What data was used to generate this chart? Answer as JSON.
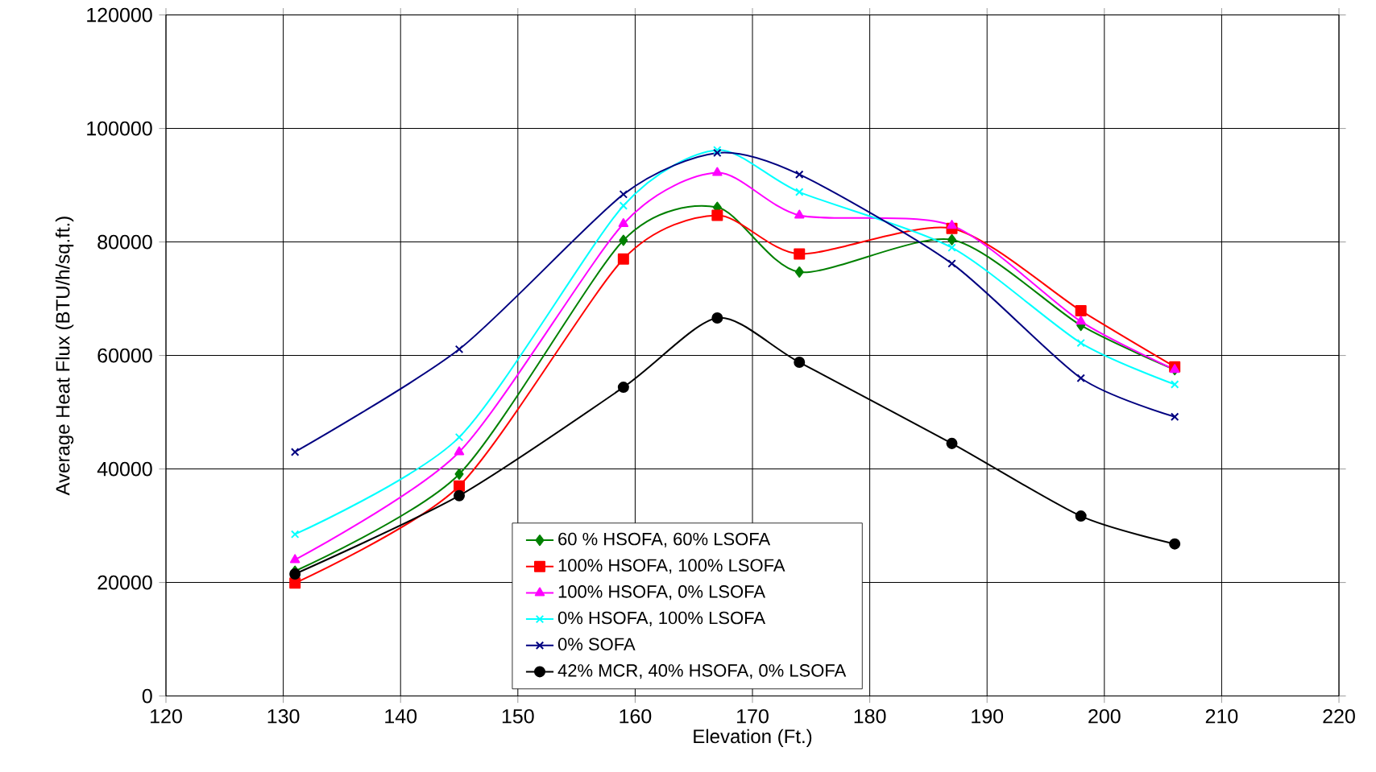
{
  "chart_data": {
    "type": "line",
    "xlabel": "Elevation (Ft.)",
    "ylabel": "Average Heat Flux (BTU/h/sq.ft.)",
    "x": [
      131,
      145,
      159,
      167,
      174,
      187,
      198,
      206
    ],
    "xlim": [
      120,
      220
    ],
    "xticks": [
      120,
      130,
      140,
      150,
      160,
      170,
      180,
      190,
      200,
      210,
      220
    ],
    "ylim": [
      0,
      120000
    ],
    "yticks": [
      0,
      20000,
      40000,
      60000,
      80000,
      100000,
      120000
    ],
    "grid": true,
    "legend": "bottom",
    "line_style": "solid",
    "series": [
      {
        "name": "60 % HSOFA, 60% LSOFA",
        "color": "#008000",
        "marker": "diamond",
        "values": [
          22000,
          39100,
          80300,
          86100,
          74700,
          80400,
          65300,
          57500
        ]
      },
      {
        "name": "100% HSOFA, 100% LSOFA",
        "color": "#ff0000",
        "marker": "square",
        "values": [
          19900,
          37000,
          77000,
          84700,
          77900,
          82400,
          67900,
          58000
        ]
      },
      {
        "name": "100% HSOFA, 0% LSOFA",
        "color": "#ff00ff",
        "marker": "triangle",
        "values": [
          24000,
          43000,
          83200,
          92200,
          84700,
          82900,
          66000,
          57500
        ]
      },
      {
        "name": "0% HSOFA, 100% LSOFA",
        "color": "#00ffff",
        "marker": "cross",
        "values": [
          28500,
          45600,
          86400,
          96200,
          88800,
          79000,
          62200,
          54900
        ]
      },
      {
        "name": "0% SOFA",
        "color": "#000080",
        "marker": "cross",
        "values": [
          43000,
          61100,
          88400,
          95700,
          91900,
          76200,
          56000,
          49200
        ]
      },
      {
        "name": "42% MCR, 40% HSOFA, 0% LSOFA",
        "color": "#000000",
        "marker": "circle",
        "values": [
          21500,
          35300,
          54400,
          66600,
          58800,
          44500,
          31700,
          26800
        ]
      }
    ]
  }
}
